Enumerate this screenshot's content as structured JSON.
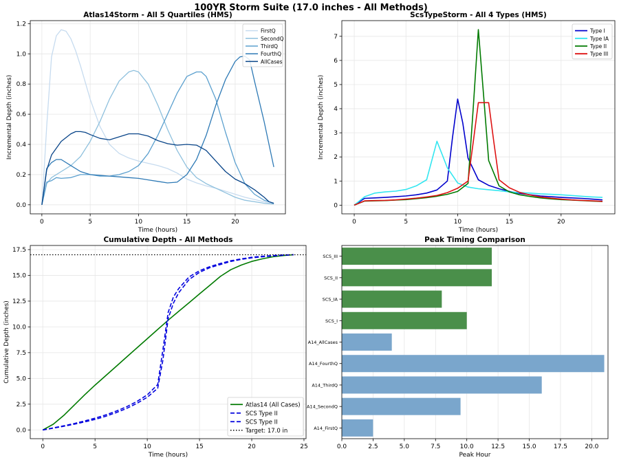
{
  "figure": {
    "suptitle": "100YR Storm Suite (17.0 inches - All Methods)"
  },
  "chart_data": [
    {
      "id": "atlas14",
      "type": "line",
      "title": "Atlas14Storm - All 5 Quartiles (HMS)",
      "xlabel": "Time (hours)",
      "ylabel": "Incremental Depth (inches)",
      "xlim": [
        -1.2,
        25.2
      ],
      "ylim": [
        -0.06,
        1.22
      ],
      "xticks": [
        0,
        5,
        10,
        15,
        20
      ],
      "yticks": [
        0.0,
        0.2,
        0.4,
        0.6,
        0.8,
        1.0,
        1.2
      ],
      "ytick_labels": [
        "0.0",
        "0.2",
        "0.4",
        "0.6",
        "0.8",
        "1.0",
        "1.2"
      ],
      "grid": true,
      "legend": "top-right",
      "series": [
        {
          "name": "FirstQ",
          "color": "#c6dbef",
          "width": 1.3,
          "x": [
            0,
            0.25,
            0.5,
            1,
            1.5,
            2,
            2.5,
            3,
            3.5,
            4,
            5,
            6,
            7,
            8,
            9,
            10,
            11,
            12,
            13,
            14,
            15,
            16,
            17,
            18,
            19,
            20,
            21,
            22,
            23,
            23.5,
            24
          ],
          "y": [
            0,
            0.25,
            0.52,
            0.98,
            1.12,
            1.16,
            1.15,
            1.1,
            1.02,
            0.92,
            0.7,
            0.52,
            0.4,
            0.34,
            0.31,
            0.29,
            0.275,
            0.26,
            0.24,
            0.21,
            0.17,
            0.145,
            0.125,
            0.11,
            0.09,
            0.07,
            0.05,
            0.035,
            0.02,
            0.01,
            0.005
          ]
        },
        {
          "name": "SecondQ",
          "color": "#8ec0dd",
          "width": 1.3,
          "x": [
            0,
            0.5,
            1,
            2,
            3,
            4,
            5,
            6,
            7,
            8,
            9,
            9.5,
            10,
            11,
            12,
            13,
            14,
            15,
            16,
            17,
            18,
            19,
            20,
            21,
            22,
            23,
            24
          ],
          "y": [
            0,
            0.14,
            0.18,
            0.22,
            0.26,
            0.32,
            0.42,
            0.55,
            0.7,
            0.82,
            0.88,
            0.89,
            0.88,
            0.8,
            0.66,
            0.5,
            0.36,
            0.25,
            0.18,
            0.14,
            0.11,
            0.08,
            0.05,
            0.03,
            0.02,
            0.01,
            0.005
          ]
        },
        {
          "name": "ThirdQ",
          "color": "#5a9fce",
          "width": 1.3,
          "x": [
            0,
            0.5,
            1,
            1.5,
            2,
            3,
            4,
            5,
            6,
            7,
            8,
            9,
            10,
            11,
            12,
            13,
            14,
            15,
            16,
            16.5,
            17,
            18,
            19,
            20,
            21,
            22,
            23,
            24
          ],
          "y": [
            0,
            0.15,
            0.16,
            0.18,
            0.175,
            0.18,
            0.2,
            0.2,
            0.19,
            0.19,
            0.2,
            0.22,
            0.26,
            0.34,
            0.46,
            0.6,
            0.74,
            0.85,
            0.88,
            0.88,
            0.85,
            0.7,
            0.48,
            0.28,
            0.14,
            0.07,
            0.03,
            0.01
          ]
        },
        {
          "name": "FourthQ",
          "color": "#2d79b5",
          "width": 1.3,
          "x": [
            0,
            0.5,
            1,
            1.5,
            2,
            3,
            4,
            5,
            6,
            7,
            8,
            9,
            10,
            11,
            12,
            13,
            14,
            15,
            16,
            17,
            18,
            19,
            20,
            20.5,
            21,
            21.5,
            22,
            23,
            24
          ],
          "y": [
            0,
            0.24,
            0.28,
            0.3,
            0.3,
            0.26,
            0.22,
            0.2,
            0.195,
            0.19,
            0.185,
            0.18,
            0.175,
            0.165,
            0.155,
            0.145,
            0.15,
            0.2,
            0.3,
            0.46,
            0.66,
            0.83,
            0.95,
            0.98,
            0.985,
            0.96,
            0.82,
            0.55,
            0.25
          ]
        },
        {
          "name": "AllCases",
          "color": "#084488",
          "width": 1.3,
          "x": [
            0,
            0.5,
            1,
            2,
            3,
            3.5,
            4,
            4.5,
            5,
            6,
            7,
            8,
            9,
            10,
            11,
            12,
            13,
            14,
            15,
            16,
            17,
            18,
            19,
            20,
            21,
            22,
            23,
            23.5,
            24
          ],
          "y": [
            0,
            0.23,
            0.33,
            0.42,
            0.47,
            0.485,
            0.485,
            0.48,
            0.465,
            0.44,
            0.43,
            0.45,
            0.47,
            0.47,
            0.455,
            0.425,
            0.405,
            0.395,
            0.4,
            0.395,
            0.36,
            0.29,
            0.22,
            0.17,
            0.14,
            0.1,
            0.05,
            0.02,
            0.01
          ]
        }
      ]
    },
    {
      "id": "scs",
      "type": "line",
      "title": "ScsTypeStorm - All 4 Types (HMS)",
      "xlabel": "Time (hours)",
      "ylabel": "Incremental Depth (inches)",
      "xlim": [
        -1.2,
        25.2
      ],
      "ylim": [
        -0.36,
        7.65
      ],
      "xticks": [
        0,
        5,
        10,
        15,
        20
      ],
      "yticks": [
        0,
        1,
        2,
        3,
        4,
        5,
        6,
        7
      ],
      "ytick_labels": [
        "0",
        "1",
        "2",
        "3",
        "4",
        "5",
        "6",
        "7"
      ],
      "grid": true,
      "legend": "top-right",
      "series": [
        {
          "name": "Type I",
          "color": "#0000cc",
          "width": 1.6,
          "x": [
            0,
            1,
            2,
            3,
            4,
            5,
            6,
            7,
            8,
            9,
            9.5,
            10,
            10.5,
            11,
            12,
            13,
            14,
            15,
            16,
            17,
            18,
            19,
            20,
            21,
            22,
            23,
            24
          ],
          "y": [
            0,
            0.28,
            0.3,
            0.32,
            0.35,
            0.38,
            0.43,
            0.5,
            0.63,
            1.0,
            2.8,
            4.4,
            3.4,
            1.95,
            1.05,
            0.82,
            0.68,
            0.57,
            0.49,
            0.43,
            0.38,
            0.35,
            0.32,
            0.3,
            0.28,
            0.25,
            0.22
          ]
        },
        {
          "name": "Type IA",
          "color": "#33e6f0",
          "width": 1.6,
          "x": [
            0,
            1,
            2,
            3,
            4,
            5,
            6,
            7,
            7.5,
            8,
            8.5,
            9,
            10,
            11,
            12,
            13,
            14,
            15,
            16,
            17,
            18,
            19,
            20,
            21,
            22,
            23,
            24
          ],
          "y": [
            0,
            0.35,
            0.5,
            0.55,
            0.58,
            0.65,
            0.8,
            1.05,
            1.85,
            2.65,
            2.1,
            1.55,
            0.92,
            0.75,
            0.68,
            0.64,
            0.6,
            0.55,
            0.52,
            0.5,
            0.47,
            0.45,
            0.43,
            0.4,
            0.37,
            0.34,
            0.32
          ]
        },
        {
          "name": "Type II",
          "color": "#007a00",
          "width": 1.6,
          "x": [
            0,
            1,
            2,
            3,
            4,
            5,
            6,
            7,
            8,
            9,
            10,
            11,
            11.5,
            12,
            12.5,
            13,
            14,
            15,
            16,
            17,
            18,
            19,
            20,
            21,
            22,
            23,
            24
          ],
          "y": [
            0,
            0.17,
            0.18,
            0.19,
            0.21,
            0.23,
            0.27,
            0.31,
            0.37,
            0.45,
            0.57,
            0.9,
            4.0,
            7.28,
            4.6,
            1.85,
            0.8,
            0.55,
            0.43,
            0.36,
            0.3,
            0.26,
            0.23,
            0.21,
            0.19,
            0.17,
            0.15
          ]
        },
        {
          "name": "Type III",
          "color": "#dd1111",
          "width": 1.6,
          "x": [
            0,
            1,
            2,
            3,
            4,
            5,
            6,
            7,
            8,
            9,
            10,
            11,
            11.5,
            12,
            12.5,
            13,
            13.5,
            14,
            15,
            16,
            17,
            18,
            19,
            20,
            21,
            22,
            23,
            24
          ],
          "y": [
            0,
            0.18,
            0.19,
            0.2,
            0.22,
            0.25,
            0.29,
            0.34,
            0.4,
            0.52,
            0.7,
            1.0,
            2.6,
            4.25,
            4.25,
            4.25,
            2.6,
            1.05,
            0.72,
            0.53,
            0.42,
            0.34,
            0.29,
            0.25,
            0.22,
            0.2,
            0.18,
            0.16
          ]
        }
      ]
    },
    {
      "id": "cumulative",
      "type": "line",
      "title": "Cumulative Depth - All Methods",
      "xlabel": "Time (hours)",
      "ylabel": "Cumulative Depth (inches)",
      "xlim": [
        -1.2,
        25.2
      ],
      "ylim": [
        -0.85,
        17.9
      ],
      "xticks": [
        0,
        5,
        10,
        15,
        20,
        25
      ],
      "yticks": [
        0,
        2.5,
        5,
        7.5,
        10,
        12.5,
        15,
        17.5
      ],
      "ytick_labels": [
        "0.0",
        "2.5",
        "5.0",
        "7.5",
        "10.0",
        "12.5",
        "15.0",
        "17.5"
      ],
      "grid": true,
      "legend": "bottom-right",
      "series": [
        {
          "name": "Atlas14 (All Cases)",
          "color": "#007a00",
          "width": 1.6,
          "dash": "",
          "x": [
            0,
            1,
            2,
            3,
            4,
            5,
            6,
            7,
            8,
            9,
            10,
            11,
            12,
            13,
            14,
            15,
            16,
            17,
            18,
            19,
            20,
            21,
            22,
            23,
            24
          ],
          "y": [
            0,
            0.55,
            1.4,
            2.4,
            3.4,
            4.35,
            5.25,
            6.15,
            7.05,
            7.95,
            8.85,
            9.75,
            10.65,
            11.5,
            12.35,
            13.2,
            14.05,
            14.9,
            15.55,
            16.0,
            16.35,
            16.6,
            16.8,
            16.92,
            17.0
          ]
        },
        {
          "name": "SCS Type II",
          "color": "#0000dd",
          "width": 1.6,
          "dash": "6,3",
          "x": [
            0,
            1,
            2,
            3,
            4,
            5,
            6,
            7,
            8,
            9,
            10,
            11,
            11.5,
            12,
            12.5,
            13,
            14,
            15,
            16,
            17,
            18,
            19,
            20,
            21,
            22,
            23,
            24
          ],
          "y": [
            0,
            0.17,
            0.35,
            0.55,
            0.78,
            1.02,
            1.32,
            1.67,
            2.07,
            2.57,
            3.17,
            4.05,
            6.8,
            10.8,
            12.3,
            13.3,
            14.6,
            15.3,
            15.75,
            16.05,
            16.35,
            16.55,
            16.7,
            16.8,
            16.88,
            16.95,
            17.0
          ]
        },
        {
          "name": "SCS Type II",
          "color": "#0000dd",
          "width": 1.6,
          "dash": "6,3",
          "x": [
            0,
            1,
            2,
            3,
            4,
            5,
            6,
            7,
            8,
            9,
            10,
            11,
            11.5,
            12,
            12.5,
            13,
            14,
            15,
            16,
            17,
            18,
            19,
            20,
            21,
            22,
            23,
            24
          ],
          "y": [
            0,
            0.2,
            0.4,
            0.62,
            0.87,
            1.14,
            1.45,
            1.82,
            2.24,
            2.75,
            3.4,
            4.4,
            7.8,
            11.4,
            12.9,
            13.7,
            14.85,
            15.45,
            15.85,
            16.15,
            16.42,
            16.6,
            16.75,
            16.85,
            16.92,
            16.97,
            17.0
          ]
        },
        {
          "name": "Target: 17.0 in",
          "color": "#000000",
          "width": 1.3,
          "dash": "1.5,2.5",
          "x": [
            -1.2,
            25.2
          ],
          "y": [
            17.0,
            17.0
          ]
        }
      ]
    },
    {
      "id": "peak",
      "type": "bar",
      "orientation": "horizontal",
      "title": "Peak Timing Comparison",
      "xlabel": "Peak Hour",
      "xlim": [
        0,
        21.3
      ],
      "xticks": [
        0,
        2.5,
        5,
        7.5,
        10,
        12.5,
        15,
        17.5,
        20
      ],
      "xtick_labels": [
        "0.0",
        "2.5",
        "5.0",
        "7.5",
        "10.0",
        "12.5",
        "15.0",
        "17.5",
        "20.0"
      ],
      "grid": true,
      "categories": [
        "A14_FirstQ",
        "A14_SecondQ",
        "A14_ThirdQ",
        "A14_FourthQ",
        "A14_AllCases",
        "SCS_I",
        "SCS_IA",
        "SCS_II",
        "SCS_III"
      ],
      "values": [
        2.5,
        9.5,
        16.0,
        21.0,
        4.0,
        10.0,
        8.0,
        12.0,
        12.0
      ],
      "colors": [
        "#7aa6cc",
        "#7aa6cc",
        "#7aa6cc",
        "#7aa6cc",
        "#7aa6cc",
        "#4a8f4a",
        "#4a8f4a",
        "#4a8f4a",
        "#4a8f4a"
      ]
    }
  ]
}
